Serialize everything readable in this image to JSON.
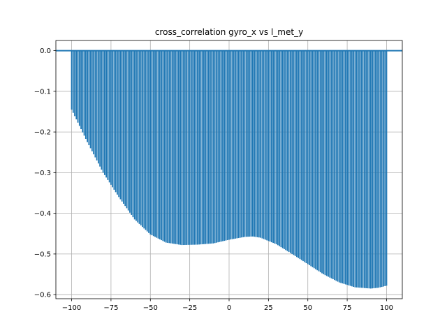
{
  "chart_data": {
    "type": "bar",
    "title": "cross_correlation gyro_x vs l_met_y",
    "xlabel": "",
    "ylabel": "",
    "xlim": [
      -110,
      110
    ],
    "ylim": [
      -0.61,
      0.025
    ],
    "xticks": [
      -100,
      -75,
      -50,
      -25,
      0,
      25,
      50,
      75,
      100
    ],
    "xtick_labels": [
      "−100",
      "−75",
      "−50",
      "−25",
      "0",
      "25",
      "50",
      "75",
      "100"
    ],
    "yticks": [
      0.0,
      -0.1,
      -0.2,
      -0.3,
      -0.4,
      -0.5,
      -0.6
    ],
    "ytick_labels": [
      "0.0",
      "−0.1",
      "−0.2",
      "−0.3",
      "−0.4",
      "−0.5",
      "−0.6"
    ],
    "grid": true,
    "baseline_y": 0.0,
    "color": "#1f77b4",
    "x_range": [
      -100,
      100
    ],
    "x_step": 1,
    "anchors": {
      "x": [
        -100,
        -90,
        -80,
        -70,
        -60,
        -50,
        -40,
        -30,
        -20,
        -10,
        0,
        10,
        15,
        20,
        30,
        40,
        50,
        60,
        70,
        80,
        90,
        95,
        100
      ],
      "y": [
        -0.145,
        -0.225,
        -0.3,
        -0.36,
        -0.415,
        -0.452,
        -0.472,
        -0.478,
        -0.477,
        -0.474,
        -0.465,
        -0.458,
        -0.457,
        -0.46,
        -0.476,
        -0.5,
        -0.525,
        -0.55,
        -0.57,
        -0.582,
        -0.585,
        -0.583,
        -0.578
      ]
    }
  }
}
